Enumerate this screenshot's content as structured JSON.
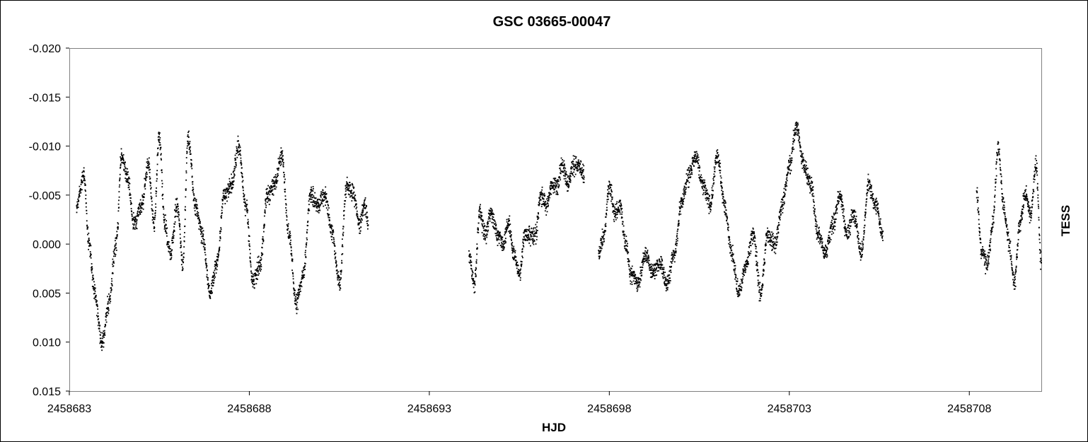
{
  "chart_data": {
    "type": "scatter",
    "title": "GSC 03665-00047",
    "xlabel": "HJD",
    "ylabel": "TESS",
    "xlim": [
      2458683,
      2458710
    ],
    "ylim": [
      -0.02,
      0.015
    ],
    "y_inverted": true,
    "grid": false,
    "legend": "none",
    "x_ticks": [
      2458683,
      2458688,
      2458693,
      2458698,
      2458703,
      2458708
    ],
    "x_tick_labels": [
      "2458683",
      "2458688",
      "2458693",
      "2458698",
      "2458703",
      "2458708"
    ],
    "y_ticks": [
      -0.02,
      -0.015,
      -0.01,
      -0.005,
      0.0,
      0.005,
      0.01,
      0.015
    ],
    "y_tick_labels": [
      "-0.020",
      "-0.015",
      "-0.010",
      "-0.005",
      "0.000",
      "0.005",
      "0.010",
      "0.015"
    ],
    "marker_color": "#000000",
    "series": [
      {
        "segments": [
          {
            "x": [
              2458683.2,
              2458683.4,
              2458683.55,
              2458683.7,
              2458683.9,
              2458684.1,
              2458684.3,
              2458684.45,
              2458684.6,
              2458684.8,
              2458685.0,
              2458685.2,
              2458685.35,
              2458685.5,
              2458685.65,
              2458685.8,
              2458686.0,
              2458686.15,
              2458686.3,
              2458686.5,
              2458686.7,
              2458686.9,
              2458687.1,
              2458687.3,
              2458687.5,
              2458687.7,
              2458687.9,
              2458688.1,
              2458688.3,
              2458688.5,
              2458688.7,
              2458688.9,
              2458689.1,
              2458689.3,
              2458689.5,
              2458689.7,
              2458689.9,
              2458690.1,
              2458690.3,
              2458690.5,
              2458690.7,
              2458690.9,
              2458691.05,
              2458691.2,
              2458691.3
            ],
            "y": [
              -0.004,
              -0.007,
              0.0,
              0.005,
              0.01,
              0.006,
              0.0,
              -0.009,
              -0.007,
              -0.002,
              -0.004,
              -0.008,
              -0.002,
              -0.011,
              -0.002,
              0.001,
              -0.004,
              0.002,
              -0.011,
              -0.004,
              -0.001,
              0.005,
              0.002,
              -0.005,
              -0.006,
              -0.01,
              -0.004,
              0.004,
              0.002,
              -0.005,
              -0.006,
              -0.009,
              -0.001,
              0.006,
              0.003,
              -0.005,
              -0.004,
              -0.005,
              -0.001,
              0.004,
              -0.006,
              -0.005,
              -0.002,
              -0.004,
              -0.002
            ]
          },
          {
            "x": [
              2458694.1,
              2458694.25,
              2458694.4,
              2458694.55,
              2458694.7,
              2458694.9,
              2458695.05,
              2458695.2,
              2458695.35,
              2458695.5,
              2458695.65,
              2458695.8,
              2458695.95,
              2458696.1,
              2458696.25,
              2458696.4,
              2458696.55,
              2458696.7,
              2458696.85,
              2458697.0,
              2458697.15,
              2458697.3
            ],
            "y": [
              0.001,
              0.004,
              -0.003,
              -0.001,
              -0.003,
              -0.001,
              0.0,
              -0.002,
              0.001,
              0.003,
              -0.001,
              -0.001,
              -0.001,
              -0.005,
              -0.004,
              -0.006,
              -0.006,
              -0.008,
              -0.006,
              -0.008,
              -0.008,
              -0.007
            ]
          },
          {
            "x": [
              2458697.7,
              2458697.85,
              2458698.0,
              2458698.15,
              2458698.3,
              2458698.45,
              2458698.6,
              2458698.8,
              2458699.0,
              2458699.2,
              2458699.4,
              2458699.6,
              2458699.8,
              2458700.0,
              2458700.2,
              2458700.4,
              2458700.6,
              2458700.8,
              2458701.0,
              2458701.2,
              2458701.4,
              2458701.6,
              2458701.8,
              2458702.0,
              2458702.2,
              2458702.4,
              2458702.6,
              2458702.8,
              2458703.0,
              2458703.2,
              2458703.4,
              2458703.6,
              2458703.8,
              2458704.0,
              2458704.2,
              2458704.4,
              2458704.6,
              2458704.8,
              2458705.0,
              2458705.2,
              2458705.4,
              2458705.6
            ],
            "y": [
              0.001,
              -0.001,
              -0.006,
              -0.003,
              -0.004,
              0.0,
              0.003,
              0.004,
              0.001,
              0.003,
              0.002,
              0.004,
              0.001,
              -0.004,
              -0.007,
              -0.009,
              -0.006,
              -0.004,
              -0.009,
              -0.004,
              0.001,
              0.005,
              0.002,
              -0.001,
              0.005,
              -0.001,
              0.0,
              -0.004,
              -0.008,
              -0.012,
              -0.008,
              -0.006,
              -0.001,
              0.001,
              -0.002,
              -0.005,
              -0.001,
              -0.003,
              0.001,
              -0.006,
              -0.004,
              -0.001
            ]
          },
          {
            "x": [
              2458708.2,
              2458708.35,
              2458708.5,
              2458708.65,
              2458708.8,
              2458708.95,
              2458709.1,
              2458709.25,
              2458709.4,
              2458709.55,
              2458709.7,
              2458709.85,
              2458710.0
            ],
            "y": [
              -0.005,
              0.001,
              0.002,
              -0.002,
              -0.01,
              -0.004,
              0.0,
              0.004,
              -0.002,
              -0.005,
              -0.003,
              -0.008,
              0.002
            ]
          }
        ]
      }
    ]
  }
}
